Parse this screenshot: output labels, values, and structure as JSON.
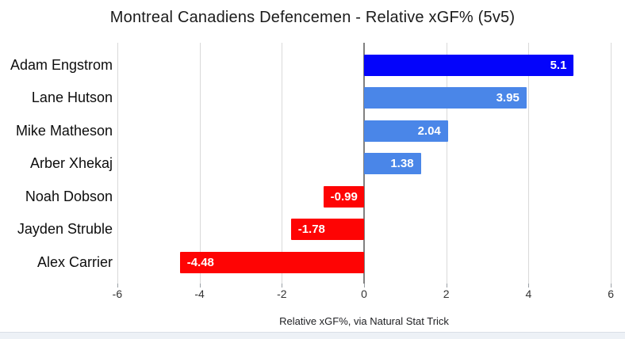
{
  "title": "Montreal Canadiens Defencemen - Relative xGF% (5v5)",
  "chart_data": {
    "type": "bar",
    "orientation": "horizontal",
    "title": "Montreal Canadiens Defencemen - Relative xGF% (5v5)",
    "categories": [
      "Adam Engstrom",
      "Lane Hutson",
      "Mike Matheson",
      "Arber Xhekaj",
      "Noah Dobson",
      "Jayden Struble",
      "Alex Carrier"
    ],
    "values": [
      5.1,
      3.95,
      2.04,
      1.38,
      -0.99,
      -1.78,
      -4.48
    ],
    "value_labels": [
      "5.1",
      "3.95",
      "2.04",
      "1.38",
      "-0.99",
      "-1.78",
      "-4.48"
    ],
    "bar_colors": [
      "#0404fb",
      "#4a86e8",
      "#4a86e8",
      "#4a86e8",
      "#fe0404",
      "#fe0404",
      "#fe0404"
    ],
    "positive_color_highlight": "#0404fb",
    "positive_color": "#4a86e8",
    "negative_color": "#fe0404",
    "xlabel": "Relative xGF%, via Natural Stat Trick",
    "ylabel": "",
    "xlim": [
      -6,
      6
    ],
    "xticks": [
      -6,
      -4,
      -2,
      0,
      2,
      4,
      6
    ],
    "xtick_labels": [
      "-6",
      "-4",
      "-2",
      "0",
      "2",
      "4",
      "6"
    ],
    "grid": true,
    "legend": false,
    "value_labels_inside_bars": true
  }
}
